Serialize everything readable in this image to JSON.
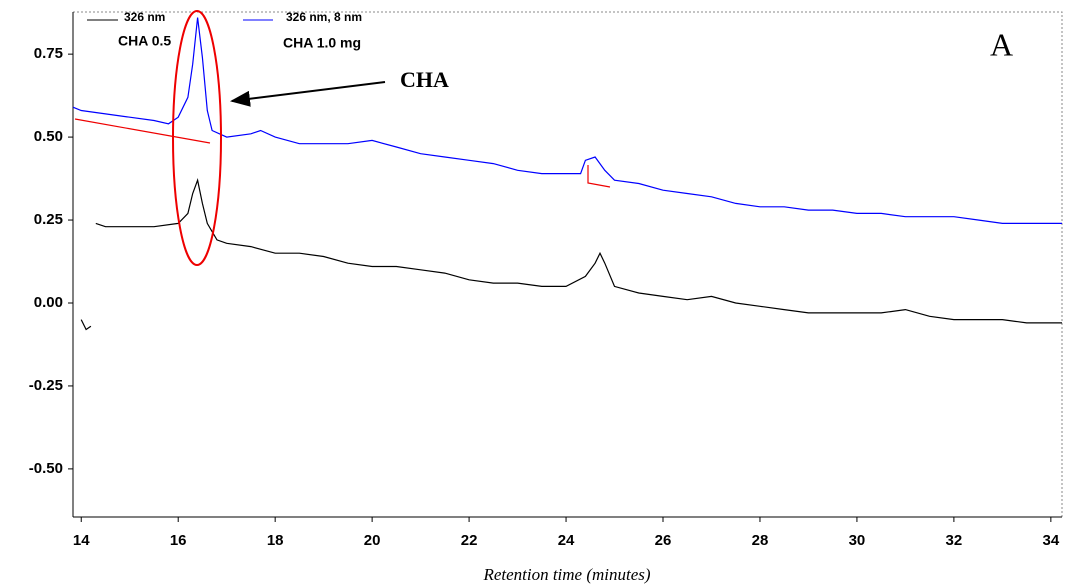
{
  "chart_data": {
    "type": "line",
    "xlabel": "Retention time (minutes)",
    "xlim": [
      13.83,
      34.23
    ],
    "ylim": [
      -0.645,
      0.877
    ],
    "xticks": [
      14,
      16,
      18,
      20,
      22,
      24,
      26,
      28,
      30,
      32,
      34
    ],
    "yticks": [
      {
        "value": 0.75,
        "label": "0.75"
      },
      {
        "value": 0.5,
        "label": "0.50"
      },
      {
        "value": 0.25,
        "label": "0.25"
      },
      {
        "value": 0,
        "label": "0.00"
      },
      {
        "value": -0.25,
        "label": "-0.25"
      },
      {
        "value": -0.5,
        "label": "-0.50"
      }
    ],
    "annotations": {
      "panel": "A",
      "peak": "CHA"
    },
    "series": [
      {
        "name": "326 nm",
        "description": "CHA 0.5",
        "color": "#000000",
        "x": [
          14.0,
          14.1,
          14.2,
          14.25,
          14.3,
          14.5,
          15,
          15.5,
          16,
          16.2,
          16.3,
          16.4,
          16.5,
          16.6,
          16.8,
          17,
          17.5,
          18,
          18.5,
          19,
          19.5,
          20,
          20.5,
          21,
          21.5,
          22,
          22.5,
          23,
          23.5,
          24,
          24.4,
          24.6,
          24.7,
          24.8,
          25,
          25.5,
          26,
          26.5,
          27,
          27.5,
          28,
          28.5,
          29,
          29.5,
          30,
          30.5,
          31,
          31.5,
          32,
          32.5,
          33,
          33.5,
          34,
          34.23
        ],
        "values": [
          -0.05,
          -0.08,
          -0.07,
          null,
          0.24,
          0.23,
          0.23,
          0.23,
          0.24,
          0.27,
          0.33,
          0.37,
          0.3,
          0.24,
          0.19,
          0.18,
          0.17,
          0.15,
          0.15,
          0.14,
          0.12,
          0.11,
          0.11,
          0.1,
          0.09,
          0.07,
          0.06,
          0.06,
          0.05,
          0.05,
          0.08,
          0.12,
          0.15,
          0.12,
          0.05,
          0.03,
          0.02,
          0.01,
          0.02,
          0.0,
          -0.01,
          -0.02,
          -0.03,
          -0.03,
          -0.03,
          -0.03,
          -0.02,
          -0.04,
          -0.05,
          -0.05,
          -0.05,
          -0.06,
          -0.06,
          -0.06
        ]
      },
      {
        "name": "326 nm, 8 nm",
        "description": "CHA 1.0 mg",
        "color": "#0000ff",
        "x": [
          13.83,
          14,
          14.5,
          15,
          15.5,
          15.8,
          16.0,
          16.2,
          16.3,
          16.4,
          16.5,
          16.6,
          16.7,
          17,
          17.5,
          17.7,
          18,
          18.5,
          19,
          19.5,
          20,
          20.5,
          21,
          21.5,
          22,
          22.5,
          23,
          23.5,
          24,
          24.3,
          24.4,
          24.6,
          24.8,
          25,
          25.5,
          26,
          26.5,
          27,
          27.5,
          28,
          28.5,
          29,
          29.5,
          30,
          30.5,
          31,
          31.5,
          32,
          32.5,
          33,
          33.5,
          34,
          34.23
        ],
        "values": [
          0.59,
          0.58,
          0.57,
          0.56,
          0.55,
          0.54,
          0.56,
          0.62,
          0.72,
          0.86,
          0.74,
          0.58,
          0.52,
          0.5,
          0.51,
          0.52,
          0.5,
          0.48,
          0.48,
          0.48,
          0.49,
          0.47,
          0.45,
          0.44,
          0.43,
          0.42,
          0.4,
          0.39,
          0.39,
          0.39,
          0.43,
          0.44,
          0.4,
          0.37,
          0.36,
          0.34,
          0.33,
          0.32,
          0.3,
          0.29,
          0.29,
          0.28,
          0.28,
          0.27,
          0.27,
          0.26,
          0.26,
          0.26,
          0.25,
          0.24,
          0.24,
          0.24,
          0.24
        ]
      }
    ]
  }
}
